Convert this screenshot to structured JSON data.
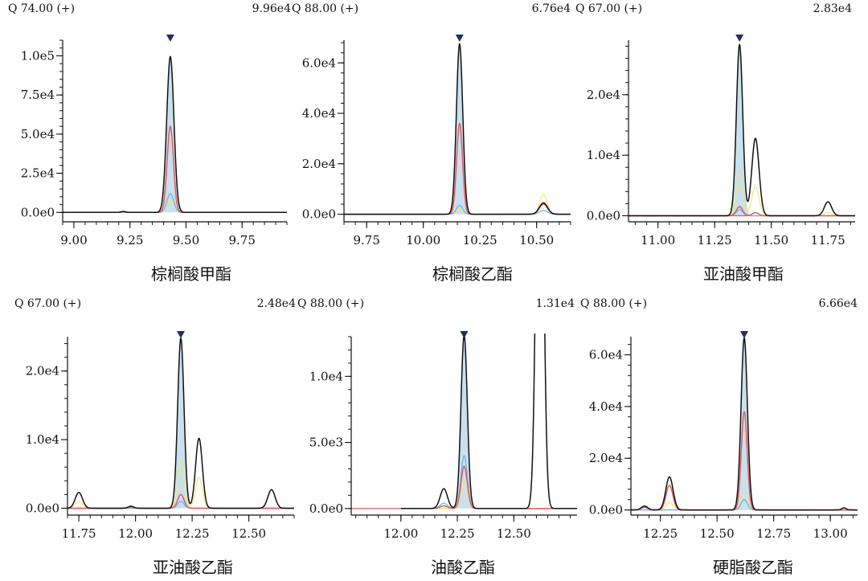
{
  "colors": {
    "axis": "#111111",
    "trace_main": "#111111",
    "trace_q1": "#e45b5b",
    "trace_q2": "#6fb3ee",
    "trace_q3": "#f2e77a",
    "peak_fill": "#c9e0ef",
    "baseline_red": "#e45b5b",
    "marker": "#1d2f66"
  },
  "chart_data": [
    {
      "type": "line",
      "title": "棕榈酸甲酯",
      "header_ion": "Q 74.00 (+)",
      "header_max": "9.96e4",
      "xlim": [
        8.95,
        9.95
      ],
      "ylim": [
        -6000,
        110000
      ],
      "xticks": [
        9.0,
        9.25,
        9.5,
        9.75
      ],
      "xtick_labels": [
        "9.00",
        "9.25",
        "9.50",
        "9.75"
      ],
      "xminor": 0.05,
      "yticks": [
        0,
        25000,
        50000,
        75000,
        100000
      ],
      "ytick_labels": [
        "0.0e0",
        "2.5e4",
        "5.0e4",
        "7.5e4",
        "1.0e5"
      ],
      "yminor": 5000,
      "marker_x": 9.43,
      "red_baseline": [
        9.62,
        9.84
      ],
      "trace_range": [
        8.95,
        9.95
      ],
      "series": [
        {
          "name": "main",
          "peaks": [
            [
              9.43,
              99600,
              0.016
            ],
            [
              9.22,
              600,
              0.01
            ]
          ]
        },
        {
          "name": "q1",
          "peaks": [
            [
              9.43,
              55000,
              0.014
            ],
            [
              9.22,
              500,
              0.01
            ]
          ]
        },
        {
          "name": "q2",
          "peaks": [
            [
              9.43,
              12000,
              0.015
            ]
          ]
        },
        {
          "name": "q3",
          "peaks": [
            [
              9.43,
              8000,
              0.015
            ]
          ]
        }
      ]
    },
    {
      "type": "line",
      "title": "棕榈酸乙酯",
      "header_ion": "Q 88.00 (+)",
      "header_max": "6.76e4",
      "xlim": [
        9.65,
        10.65
      ],
      "ylim": [
        -3000,
        69000
      ],
      "xticks": [
        9.75,
        10.0,
        10.25,
        10.5
      ],
      "xtick_labels": [
        "9.75",
        "10.00",
        "10.25",
        "10.50"
      ],
      "xminor": 0.05,
      "yticks": [
        0,
        20000,
        40000,
        60000
      ],
      "ytick_labels": [
        "0.0e0",
        "2.0e4",
        "4.0e4",
        "6.0e4"
      ],
      "yminor": 4000,
      "marker_x": 10.16,
      "red_baseline": [
        10.34,
        10.46
      ],
      "trace_range": [
        9.65,
        10.65
      ],
      "series": [
        {
          "name": "main",
          "peaks": [
            [
              10.16,
              67600,
              0.014
            ],
            [
              10.53,
              4500,
              0.018
            ]
          ]
        },
        {
          "name": "q1",
          "peaks": [
            [
              10.16,
              36000,
              0.013
            ],
            [
              10.53,
              4000,
              0.018
            ]
          ]
        },
        {
          "name": "q2",
          "peaks": [
            [
              10.16,
              3500,
              0.014
            ],
            [
              10.53,
              1500,
              0.018
            ]
          ]
        },
        {
          "name": "q3",
          "peaks": [
            [
              10.16,
              2500,
              0.014
            ],
            [
              10.53,
              8000,
              0.016
            ]
          ]
        }
      ]
    },
    {
      "type": "line",
      "title": "亚油酸甲酯",
      "header_ion": "Q 67.00 (+)",
      "header_max": "2.83e4",
      "xlim": [
        10.87,
        11.87
      ],
      "ylim": [
        -1000,
        29000
      ],
      "xticks": [
        11.0,
        11.25,
        11.5,
        11.75
      ],
      "xtick_labels": [
        "11.00",
        "11.25",
        "11.50",
        "11.75"
      ],
      "xminor": 0.05,
      "yticks": [
        0,
        10000,
        20000
      ],
      "ytick_labels": [
        "0.0e0",
        "1.0e4",
        "2.0e4"
      ],
      "yminor": 2000,
      "marker_x": 11.36,
      "red_baseline": [
        10.87,
        11.55
      ],
      "trace_range": [
        10.87,
        11.87
      ],
      "series": [
        {
          "name": "main",
          "peaks": [
            [
              11.36,
              28300,
              0.014
            ],
            [
              11.43,
              12800,
              0.016
            ],
            [
              11.75,
              2300,
              0.016
            ]
          ]
        },
        {
          "name": "q1",
          "peaks": [
            [
              11.36,
              1500,
              0.014
            ],
            [
              11.43,
              500,
              0.014
            ]
          ]
        },
        {
          "name": "q2",
          "peaks": [
            [
              11.36,
              1000,
              0.014
            ]
          ]
        },
        {
          "name": "q3",
          "peaks": [
            [
              11.36,
              7000,
              0.014
            ],
            [
              11.43,
              4800,
              0.016
            ],
            [
              11.75,
              600,
              0.016
            ]
          ]
        }
      ]
    },
    {
      "type": "line",
      "title": "亚油酸乙酯",
      "header_ion": "Q 67.00 (+)",
      "header_max": "2.48e4",
      "xlim": [
        11.7,
        12.7
      ],
      "ylim": [
        -1000,
        25000
      ],
      "xticks": [
        11.75,
        12.0,
        12.25,
        12.5
      ],
      "xtick_labels": [
        "11.75",
        "12.00",
        "12.25",
        "12.50"
      ],
      "xminor": 0.05,
      "yticks": [
        0,
        10000,
        20000
      ],
      "ytick_labels": [
        "0.0e0",
        "1.0e4",
        "2.0e4"
      ],
      "yminor": 2000,
      "marker_x": 12.2,
      "red_baseline": [
        12.33,
        12.62
      ],
      "trace_range": [
        11.7,
        12.7
      ],
      "series": [
        {
          "name": "main",
          "peaks": [
            [
              12.2,
              24800,
              0.014
            ],
            [
              12.28,
              10200,
              0.015
            ],
            [
              11.75,
              2300,
              0.016
            ],
            [
              12.6,
              2700,
              0.016
            ],
            [
              11.98,
              300,
              0.012
            ]
          ]
        },
        {
          "name": "q1",
          "peaks": [
            [
              12.2,
              2000,
              0.014
            ],
            [
              11.98,
              200,
              0.012
            ]
          ]
        },
        {
          "name": "q2",
          "peaks": [
            [
              12.2,
              1000,
              0.014
            ]
          ]
        },
        {
          "name": "q3",
          "peaks": [
            [
              12.2,
              6800,
              0.014
            ],
            [
              12.28,
              4500,
              0.015
            ],
            [
              11.75,
              1000,
              0.016
            ]
          ]
        }
      ]
    },
    {
      "type": "line",
      "title": "油酸乙酯",
      "header_ion": "Q 88.00 (+)",
      "header_max": "1.31e4",
      "xlim": [
        11.78,
        12.78
      ],
      "ylim": [
        -500,
        13000
      ],
      "xticks": [
        12.0,
        12.25,
        12.5
      ],
      "xtick_labels": [
        "12.00",
        "12.25",
        "12.50"
      ],
      "xminor": 0.05,
      "yticks": [
        0,
        5000,
        10000
      ],
      "ytick_labels": [
        "0.0e0",
        "5.0e3",
        "1.0e4"
      ],
      "yminor": 1000,
      "marker_x": 12.28,
      "red_baseline": [
        11.78,
        12.0
      ],
      "trace_range": [
        12.0,
        12.78
      ],
      "series": [
        {
          "name": "main",
          "peaks": [
            [
              12.28,
              13100,
              0.014
            ],
            [
              12.19,
              1500,
              0.016
            ],
            [
              12.615,
              40000,
              0.015
            ]
          ]
        },
        {
          "name": "q1",
          "peaks": [
            [
              12.28,
              3200,
              0.014
            ],
            [
              12.19,
              200,
              0.016
            ]
          ]
        },
        {
          "name": "q2",
          "peaks": [
            [
              12.28,
              4000,
              0.014
            ],
            [
              12.19,
              400,
              0.016
            ]
          ]
        },
        {
          "name": "q3",
          "peaks": [
            [
              12.28,
              2200,
              0.014
            ]
          ]
        }
      ]
    },
    {
      "type": "line",
      "title": "硬脂酸乙酯",
      "header_ion": "Q 88.00 (+)",
      "header_max": "6.66e4",
      "xlim": [
        12.12,
        13.12
      ],
      "ylim": [
        -2000,
        67000
      ],
      "xticks": [
        12.25,
        12.5,
        12.75,
        13.0
      ],
      "xtick_labels": [
        "12.25",
        "12.50",
        "12.75",
        "13.00"
      ],
      "xminor": 0.05,
      "yticks": [
        0,
        20000,
        40000,
        60000
      ],
      "ytick_labels": [
        "0.0e0",
        "2.0e4",
        "4.0e4",
        "6.0e4"
      ],
      "yminor": 4000,
      "marker_x": 12.62,
      "red_baseline": [
        12.7,
        12.92
      ],
      "trace_range": [
        12.12,
        13.12
      ],
      "series": [
        {
          "name": "main",
          "peaks": [
            [
              12.62,
              66600,
              0.014
            ],
            [
              12.29,
              12800,
              0.016
            ],
            [
              12.18,
              1500,
              0.014
            ],
            [
              13.06,
              800,
              0.01
            ]
          ]
        },
        {
          "name": "q1",
          "peaks": [
            [
              12.62,
              38000,
              0.013
            ],
            [
              12.29,
              9500,
              0.015
            ],
            [
              12.18,
              1000,
              0.014
            ]
          ]
        },
        {
          "name": "q2",
          "peaks": [
            [
              12.62,
              4000,
              0.014
            ]
          ]
        },
        {
          "name": "q3",
          "peaks": [
            [
              12.62,
              6000,
              0.014
            ],
            [
              12.29,
              3000,
              0.015
            ]
          ]
        }
      ]
    }
  ]
}
